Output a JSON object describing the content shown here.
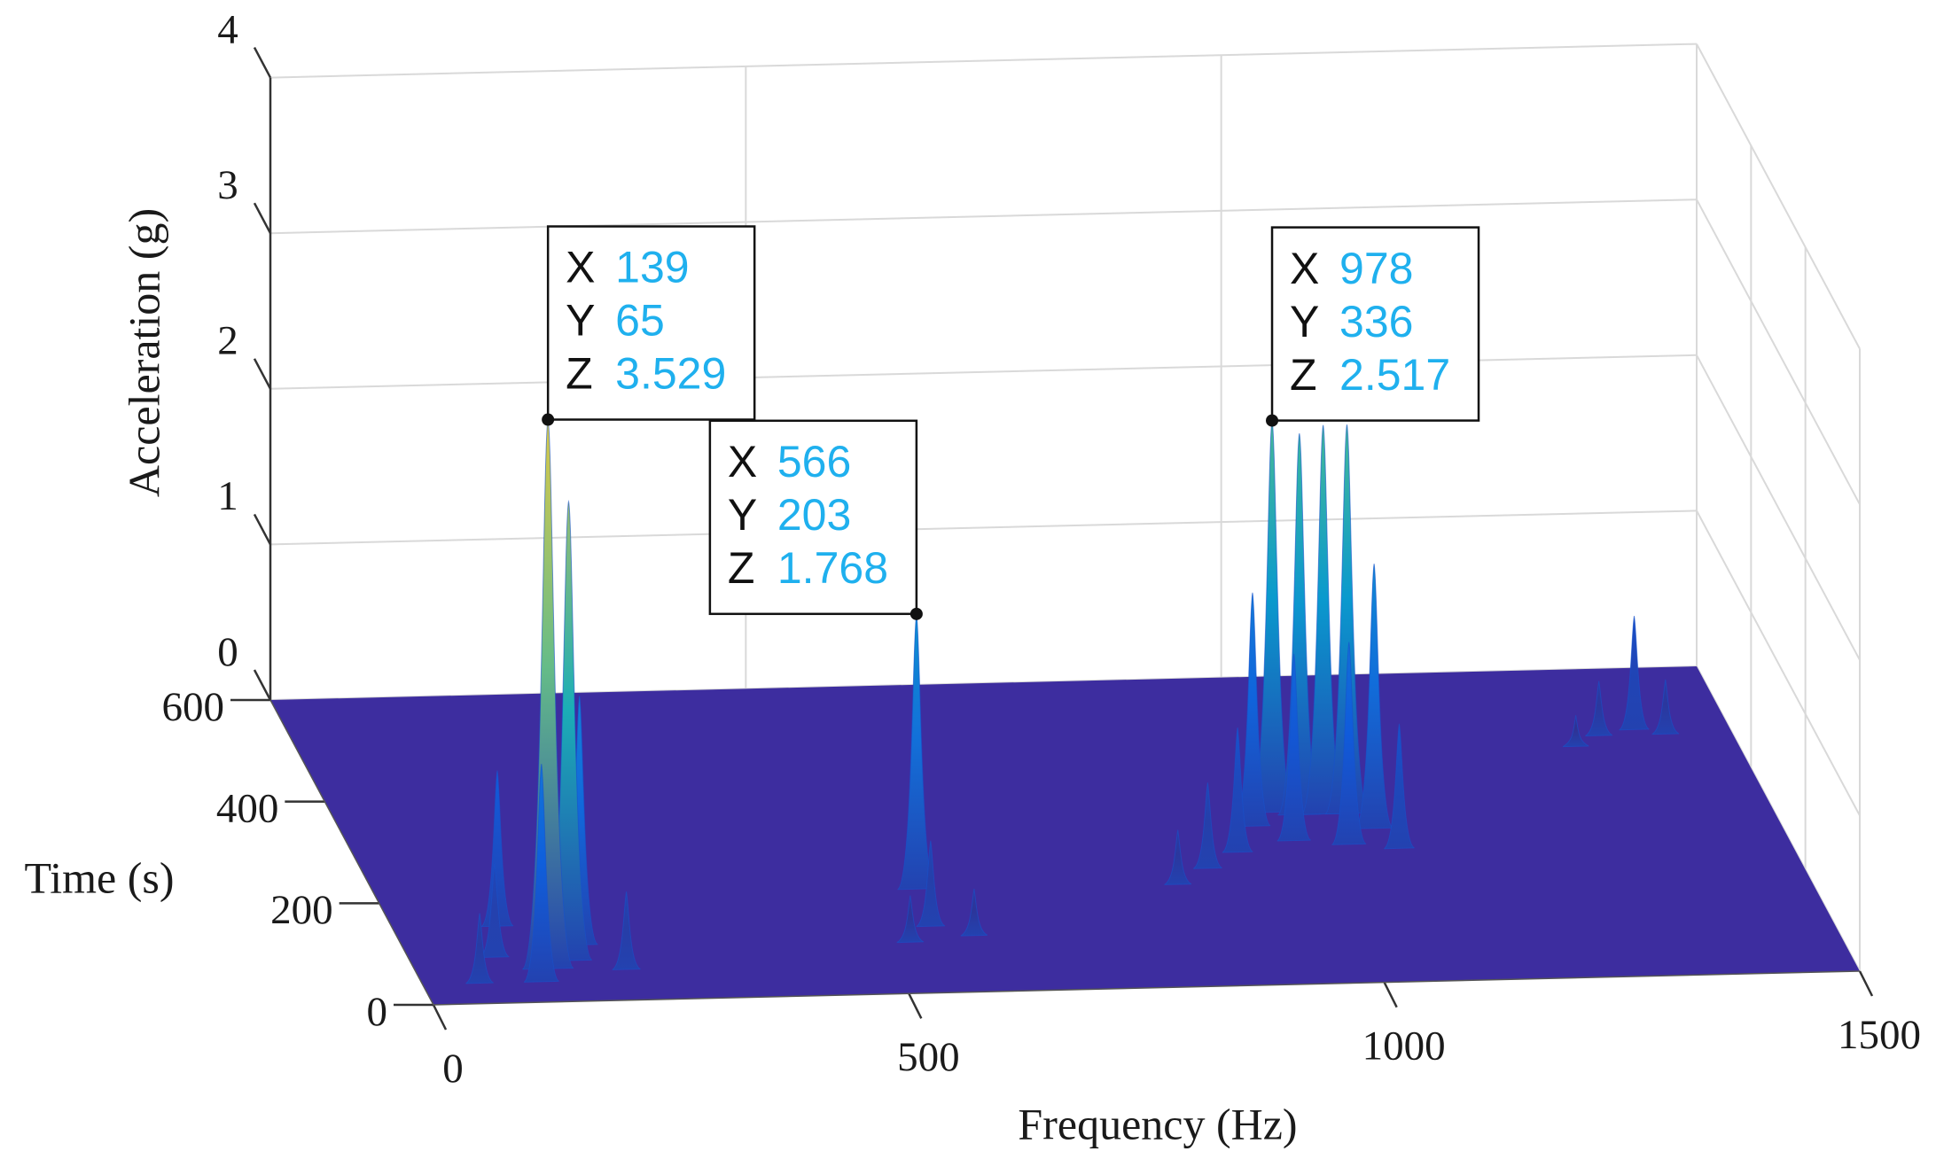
{
  "chart_data": {
    "type": "surface",
    "xlabel": "Frequency (Hz)",
    "ylabel": "Time (s)",
    "zlabel": "Acceleration (g)",
    "xlim": [
      0,
      1500
    ],
    "xticks": [
      0,
      500,
      1000,
      1500
    ],
    "ylim": [
      0,
      600
    ],
    "yticks": [
      0,
      200,
      400,
      600
    ],
    "zlim": [
      0,
      4
    ],
    "zticks": [
      0,
      1,
      2,
      3,
      4
    ],
    "grid": true,
    "colormap": "parula",
    "datatip_labels": [
      "X",
      "Y",
      "Z"
    ],
    "datatips": [
      [
        139,
        65,
        3.529
      ],
      [
        566,
        203,
        1.768
      ],
      [
        978,
        336,
        2.517
      ]
    ],
    "peaks": {
      "x": [
        165,
        110,
        125,
        185,
        60,
        220,
        90,
        560,
        530,
        600,
        1005,
        1030,
        1055,
        1075,
        950,
        985,
        1040,
        920,
        880,
        1090,
        840,
        1400,
        1430,
        1360,
        1330
      ],
      "y": [
        80,
        150,
        40,
        110,
        40,
        60,
        90,
        130,
        100,
        110,
        330,
        330,
        330,
        300,
        310,
        280,
        270,
        260,
        230,
        260,
        200,
        480,
        470,
        470,
        450
      ],
      "z": [
        2.95,
        1.0,
        1.4,
        1.6,
        0.45,
        0.5,
        0.6,
        0.55,
        0.3,
        0.3,
        2.45,
        2.5,
        2.5,
        1.7,
        1.5,
        1.2,
        1.3,
        0.8,
        0.55,
        0.8,
        0.35,
        0.73,
        0.35,
        0.35,
        0.2
      ]
    }
  }
}
